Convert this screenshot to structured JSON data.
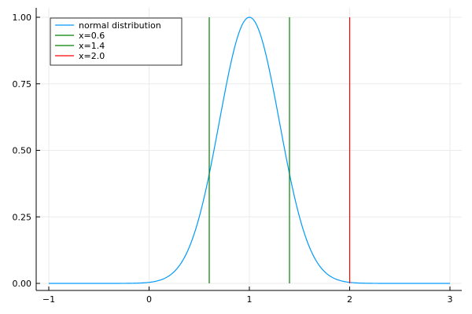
{
  "chart_data": {
    "type": "line",
    "title": "",
    "xlabel": "",
    "ylabel": "",
    "xlim": [
      -1,
      3
    ],
    "ylim": [
      0,
      1
    ],
    "xticks": [
      -1,
      0,
      1,
      2,
      3
    ],
    "xtick_labels": [
      "−1",
      "0",
      "1",
      "2",
      "3"
    ],
    "yticks": [
      0,
      0.25,
      0.5,
      0.75,
      1.0
    ],
    "ytick_labels": [
      "0.00",
      "0.25",
      "0.50",
      "0.75",
      "1.00"
    ],
    "grid": true,
    "legend_position": "top-left",
    "series": [
      {
        "name": "normal distribution",
        "kind": "curve",
        "color": "#009afa",
        "formula": "exp(-(x-1)^2/0.18)",
        "mean": 1.0,
        "peak": 1.0,
        "x": [
          -1.0,
          -0.6,
          -0.2,
          0.0,
          0.2,
          0.4,
          0.5,
          0.6,
          0.7,
          0.8,
          0.9,
          1.0,
          1.1,
          1.2,
          1.3,
          1.4,
          1.5,
          1.6,
          1.8,
          2.0,
          2.2,
          2.6,
          3.0
        ],
        "y": [
          0.0,
          0.0,
          0.0,
          0.004,
          0.029,
          0.135,
          0.249,
          0.411,
          0.607,
          0.801,
          0.946,
          1.0,
          0.946,
          0.801,
          0.607,
          0.411,
          0.249,
          0.135,
          0.029,
          0.004,
          0.0,
          0.0,
          0.0
        ]
      },
      {
        "name": "x=0.6",
        "kind": "vline",
        "x": 0.6,
        "color": "#008000"
      },
      {
        "name": "x=1.4",
        "kind": "vline",
        "x": 1.4,
        "color": "#008000"
      },
      {
        "name": "x=2.0",
        "kind": "vline",
        "x": 2.0,
        "color": "#ff0000"
      }
    ]
  }
}
